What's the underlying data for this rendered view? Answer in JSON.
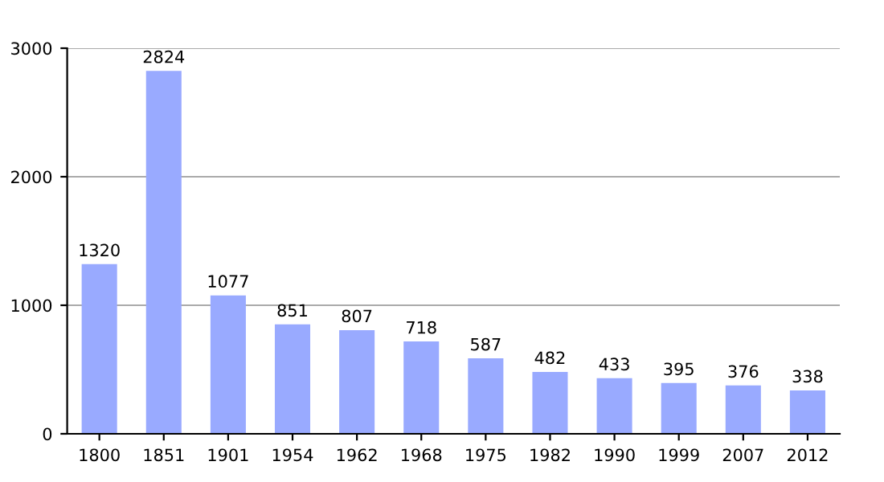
{
  "chart_data": {
    "type": "bar",
    "categories": [
      "1800",
      "1851",
      "1901",
      "1954",
      "1962",
      "1968",
      "1975",
      "1982",
      "1990",
      "1999",
      "2007",
      "2012"
    ],
    "values": [
      1320,
      2824,
      1077,
      851,
      807,
      718,
      587,
      482,
      433,
      395,
      376,
      338
    ],
    "color": "#99aaff",
    "ylim": [
      0,
      3000
    ],
    "yticks": [
      0,
      1000,
      2000,
      3000
    ],
    "grid": "y",
    "data_labels": true
  }
}
